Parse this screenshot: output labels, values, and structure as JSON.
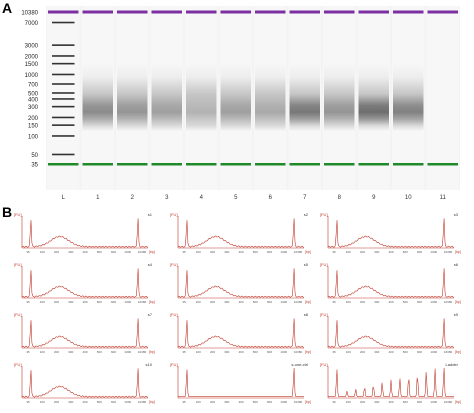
{
  "figure": {
    "panel_a_letter": "A",
    "panel_b_letter": "B"
  },
  "gel": {
    "ladder_sizes": [
      "10380",
      "7000",
      "3000",
      "2000",
      "1500",
      "1000",
      "700",
      "500",
      "400",
      "300",
      "200",
      "150",
      "100",
      "50",
      "35"
    ],
    "ladder_values": [
      10380,
      7000,
      3000,
      2000,
      1500,
      1000,
      700,
      500,
      400,
      300,
      200,
      150,
      100,
      50,
      35
    ],
    "lane_labels": [
      "L",
      "1",
      "2",
      "3",
      "4",
      "5",
      "6",
      "7",
      "8",
      "9",
      "10",
      "11"
    ],
    "upper_marker_color": "#7b2fa0",
    "lower_marker_color": "#1f8a2a",
    "smear_intensity": [
      0.55,
      0.5,
      0.45,
      0.35,
      0.45,
      0.4,
      0.65,
      0.5,
      0.7,
      0.6,
      0.0
    ]
  },
  "electropherograms": {
    "panels": [
      {
        "tag": "s1"
      },
      {
        "tag": "s2"
      },
      {
        "tag": "s3"
      },
      {
        "tag": "s4"
      },
      {
        "tag": "s5"
      },
      {
        "tag": "s6"
      },
      {
        "tag": "s7"
      },
      {
        "tag": "s8"
      },
      {
        "tag": "s9"
      },
      {
        "tag": "s10"
      },
      {
        "tag": "s-one-ctrl"
      },
      {
        "tag": "Ladder"
      }
    ],
    "y_unit": "[FU]",
    "x_unit": "[bp]",
    "x_ticks": [
      "35",
      "100",
      "200",
      "300",
      "400",
      "500",
      "600",
      "1000",
      "10380"
    ],
    "trace_color": "#c0392b",
    "axis_color": "#c0392b"
  }
}
